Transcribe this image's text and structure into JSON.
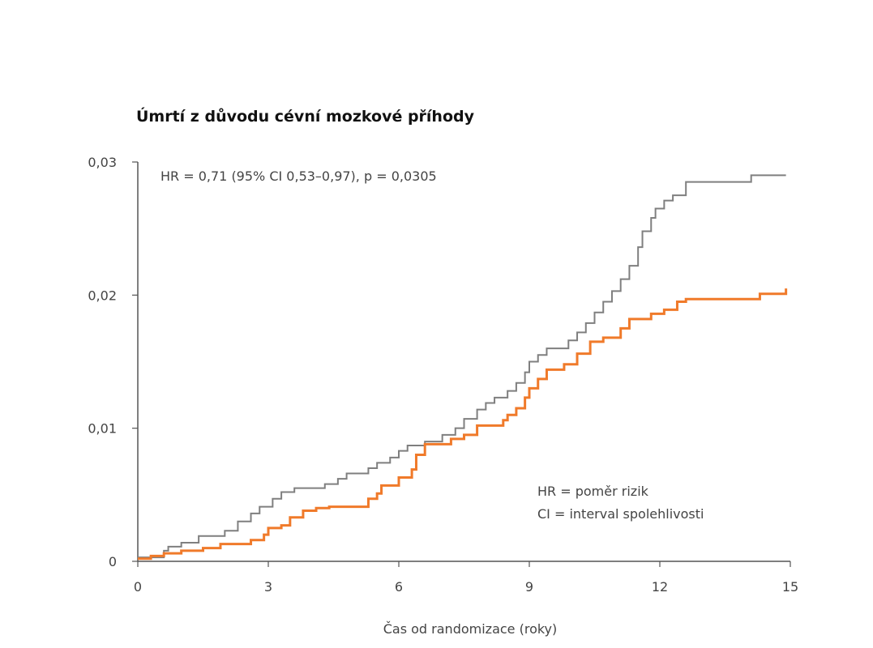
{
  "chart_data": {
    "type": "line",
    "title": "Úmrtí z důvodu cévní mozkové příhody",
    "xlabel": "Čas od randomizace (roky)",
    "ylabel": "",
    "xlim": [
      0,
      15
    ],
    "ylim": [
      0,
      0.03
    ],
    "x_ticks": [
      0,
      3,
      6,
      9,
      12,
      15
    ],
    "x_tick_labels": [
      "0",
      "3",
      "6",
      "9",
      "12",
      "15"
    ],
    "y_ticks": [
      0,
      0.01,
      0.02,
      0.03
    ],
    "y_tick_labels": [
      "0",
      "0,01",
      "0,02",
      "0,03"
    ],
    "grid": false,
    "annotations": {
      "hr_stat": "HR = 0,71 (95% CI 0,53–0,97), p = 0,0305",
      "legend_line_1": "HR = poměr rizik",
      "legend_line_2": "CI = interval spolehlivosti"
    },
    "series": [
      {
        "color": "#7f7f7f",
        "step": true,
        "points": [
          [
            0,
            0.0003
          ],
          [
            0.6,
            0.0008
          ],
          [
            0.7,
            0.0011
          ],
          [
            1.0,
            0.0014
          ],
          [
            1.4,
            0.0019
          ],
          [
            2.0,
            0.0023
          ],
          [
            2.3,
            0.003
          ],
          [
            2.6,
            0.0036
          ],
          [
            2.8,
            0.0041
          ],
          [
            3.1,
            0.0047
          ],
          [
            3.3,
            0.0052
          ],
          [
            3.6,
            0.0055
          ],
          [
            4.3,
            0.0058
          ],
          [
            4.6,
            0.0062
          ],
          [
            4.8,
            0.0066
          ],
          [
            5.3,
            0.007
          ],
          [
            5.5,
            0.0074
          ],
          [
            5.8,
            0.0078
          ],
          [
            6.0,
            0.0083
          ],
          [
            6.2,
            0.0087
          ],
          [
            6.6,
            0.009
          ],
          [
            7.0,
            0.0095
          ],
          [
            7.3,
            0.01
          ],
          [
            7.5,
            0.0107
          ],
          [
            7.8,
            0.0114
          ],
          [
            8.0,
            0.0119
          ],
          [
            8.2,
            0.0123
          ],
          [
            8.5,
            0.0128
          ],
          [
            8.7,
            0.0134
          ],
          [
            8.9,
            0.0142
          ],
          [
            9.0,
            0.015
          ],
          [
            9.2,
            0.0155
          ],
          [
            9.4,
            0.016
          ],
          [
            9.9,
            0.0166
          ],
          [
            10.1,
            0.0172
          ],
          [
            10.3,
            0.0179
          ],
          [
            10.5,
            0.0187
          ],
          [
            10.7,
            0.0195
          ],
          [
            10.9,
            0.0203
          ],
          [
            11.1,
            0.0212
          ],
          [
            11.3,
            0.0222
          ],
          [
            11.5,
            0.0236
          ],
          [
            11.6,
            0.0248
          ],
          [
            11.8,
            0.0258
          ],
          [
            11.9,
            0.0265
          ],
          [
            12.1,
            0.0271
          ],
          [
            12.3,
            0.0275
          ],
          [
            12.6,
            0.0285
          ],
          [
            14.1,
            0.029
          ],
          [
            14.9,
            0.029
          ]
        ]
      },
      {
        "color": "#f07a2a",
        "step": true,
        "points": [
          [
            0,
            0.0002
          ],
          [
            0.3,
            0.0004
          ],
          [
            0.6,
            0.0006
          ],
          [
            1.0,
            0.0008
          ],
          [
            1.5,
            0.001
          ],
          [
            1.9,
            0.0013
          ],
          [
            2.6,
            0.0016
          ],
          [
            2.9,
            0.002
          ],
          [
            3.0,
            0.0025
          ],
          [
            3.3,
            0.0027
          ],
          [
            3.5,
            0.0033
          ],
          [
            3.8,
            0.0038
          ],
          [
            4.1,
            0.004
          ],
          [
            4.4,
            0.0041
          ],
          [
            5.3,
            0.0047
          ],
          [
            5.5,
            0.0051
          ],
          [
            5.6,
            0.0057
          ],
          [
            6.0,
            0.0063
          ],
          [
            6.3,
            0.0069
          ],
          [
            6.4,
            0.008
          ],
          [
            6.6,
            0.0088
          ],
          [
            7.2,
            0.0092
          ],
          [
            7.5,
            0.0095
          ],
          [
            7.8,
            0.0102
          ],
          [
            8.4,
            0.0106
          ],
          [
            8.5,
            0.011
          ],
          [
            8.7,
            0.0115
          ],
          [
            8.9,
            0.0123
          ],
          [
            9.0,
            0.013
          ],
          [
            9.2,
            0.0137
          ],
          [
            9.4,
            0.0144
          ],
          [
            9.8,
            0.0148
          ],
          [
            10.1,
            0.0156
          ],
          [
            10.4,
            0.0165
          ],
          [
            10.7,
            0.0168
          ],
          [
            11.1,
            0.0175
          ],
          [
            11.3,
            0.0182
          ],
          [
            11.8,
            0.0186
          ],
          [
            12.1,
            0.0189
          ],
          [
            12.4,
            0.0195
          ],
          [
            12.6,
            0.0197
          ],
          [
            14.3,
            0.0201
          ],
          [
            14.9,
            0.0205
          ]
        ]
      }
    ]
  }
}
